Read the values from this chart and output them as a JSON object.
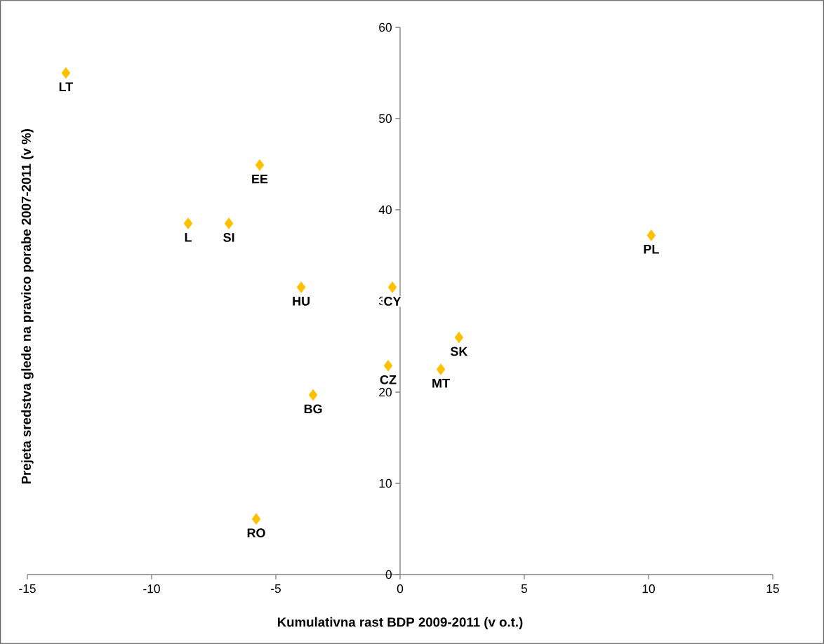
{
  "chart_data": {
    "type": "scatter",
    "xlabel": "Kumulativna rast BDP 2009-2011 (v o.t.)",
    "ylabel": "Prejeta sredstva glede na pravico porabe 2007-2011 (v %)",
    "x": [
      -13.45,
      -5.65,
      -8.53,
      -6.89,
      -3.98,
      -0.31,
      10.11,
      2.37,
      -0.48,
      1.64,
      -3.5,
      -5.79
    ],
    "series": [
      {
        "color": "#ffc000",
        "values": [
          55.0,
          44.9,
          38.5,
          38.5,
          31.5,
          31.5,
          37.2,
          26.0,
          22.9,
          22.5,
          19.7,
          6.1
        ]
      }
    ],
    "marker": "diamond",
    "grid": false,
    "xlim": [
      -15,
      15
    ],
    "ylim": [
      0,
      60
    ],
    "xticks": [
      -15,
      -10,
      -5,
      0,
      5,
      10,
      15
    ],
    "yticks": [
      0,
      10,
      20,
      30,
      40,
      50,
      60
    ],
    "annotations": [
      {
        "text": "LT",
        "x": -13.45,
        "y": 55.0
      },
      {
        "text": "EE",
        "x": -5.65,
        "y": 44.9
      },
      {
        "text": "L",
        "x": -8.53,
        "y": 38.5
      },
      {
        "text": "SI",
        "x": -6.89,
        "y": 38.5
      },
      {
        "text": "HU",
        "x": -3.98,
        "y": 31.5
      },
      {
        "text": "CY",
        "x": -0.31,
        "y": 31.5
      },
      {
        "text": "PL",
        "x": 10.11,
        "y": 37.2
      },
      {
        "text": "SK",
        "x": 2.37,
        "y": 26.0
      },
      {
        "text": "CZ",
        "x": -0.48,
        "y": 22.9
      },
      {
        "text": "MT",
        "x": 1.64,
        "y": 22.5
      },
      {
        "text": "BG",
        "x": -3.5,
        "y": 19.7
      },
      {
        "text": "RO",
        "x": -5.79,
        "y": 6.1
      }
    ]
  }
}
